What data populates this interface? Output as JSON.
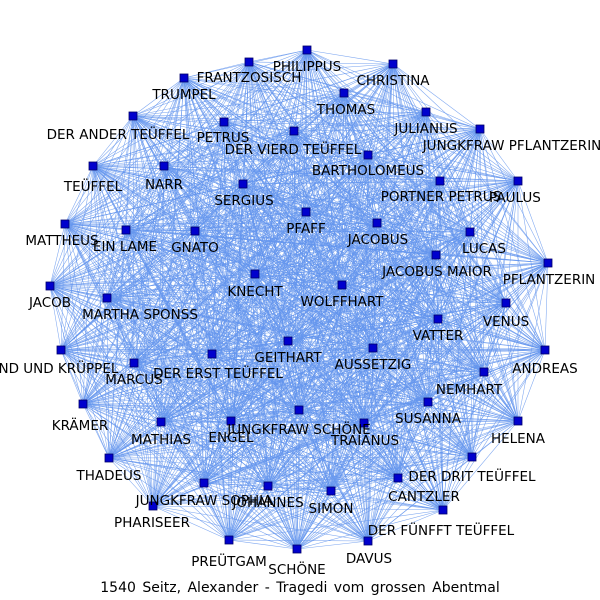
{
  "caption": "1540 Seitz, Alexander - Tragedi vom grossen Abentmal",
  "colors": {
    "edge": "#6495ed",
    "node_fill": "#0000cd",
    "node_stroke": "#00006a",
    "label": "#000000"
  },
  "graph": {
    "layout": "force-directed",
    "edge_density": "near-complete",
    "nodes": [
      "PHILIPPUS",
      "FRANTZOSISCH",
      "CHRISTINA",
      "TRUMPEL",
      "THOMAS",
      "JULIANUS",
      "DER ANDER TEÜFFEL",
      "PETRUS",
      "JUNGKFRAW PFLANTZERIN",
      "DER VIERD TEÜFFEL",
      "BARTHOLOMEUS",
      "TEÜFFEL",
      "NARR",
      "PORTNER PETRUS",
      "PAULUS",
      "SERGIUS",
      "MATTHEUS",
      "EIN LAME",
      "GNATO",
      "PFAFF",
      "JACOBUS",
      "LUCAS",
      "JACOBUS MAIOR",
      "PFLANTZERIN",
      "JACOB",
      "KNECHT",
      "WOLFFHART",
      "MARTHA SPONSS",
      "VENUS",
      "VATTER",
      "KIND UND KRÜPPEL",
      "GEITHART",
      "AUSSETZIG",
      "ANDREAS",
      "DER ERST TEÜFFEL",
      "MARCUS",
      "NEMHART",
      "SUSANNA",
      "KRÄMER",
      "MATHIAS",
      "ENGEL",
      "JUNGKFRAW SCHÖNE",
      "TRAIANUS",
      "HELENA",
      "THADEUS",
      "DER DRIT TEÜFFEL",
      "JUNGKFRAW SOPHIA",
      "JOHANNES",
      "CANTZLER",
      "SIMON",
      "PHARISEER",
      "DER FÜNFFT TEÜFFEL",
      "PREÜTGAM",
      "DAVUS",
      "SCHÖNE"
    ]
  }
}
